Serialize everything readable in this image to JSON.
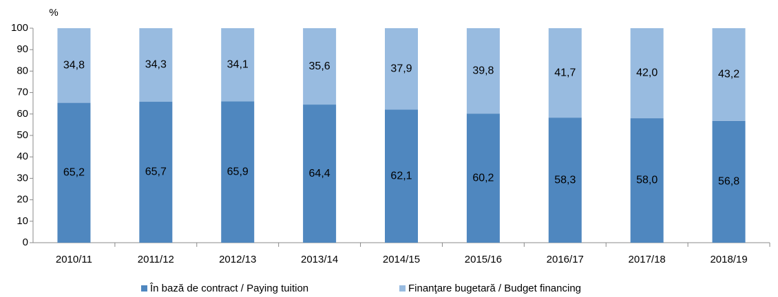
{
  "chart_data": {
    "type": "stacked_bar",
    "y_label": "%",
    "categories": [
      "2010/11",
      "2011/12",
      "2012/13",
      "2013/14",
      "2014/15",
      "2015/16",
      "2016/17",
      "2017/18",
      "2018/19"
    ],
    "series": [
      {
        "name": "În bază de contract / Paying tuition",
        "color": "#4f87bf",
        "values": [
          65.2,
          65.7,
          65.9,
          64.4,
          62.1,
          60.2,
          58.3,
          58.0,
          56.8
        ],
        "value_labels": [
          "65,2",
          "65,7",
          "65,9",
          "64,4",
          "62,1",
          "60,2",
          "58,3",
          "58,0",
          "56,8"
        ]
      },
      {
        "name": "Finanţare bugetară / Budget financing",
        "color": "#98bbe0",
        "values": [
          34.8,
          34.3,
          34.1,
          35.6,
          37.9,
          39.8,
          41.7,
          42.0,
          43.2
        ],
        "value_labels": [
          "34,8",
          "34,3",
          "34,1",
          "35,6",
          "37,9",
          "39,8",
          "41,7",
          "42,0",
          "43,2"
        ]
      }
    ],
    "ylim": [
      0,
      100
    ],
    "yticks": [
      0,
      10,
      20,
      30,
      40,
      50,
      60,
      70,
      80,
      90,
      100
    ],
    "grid": false
  }
}
